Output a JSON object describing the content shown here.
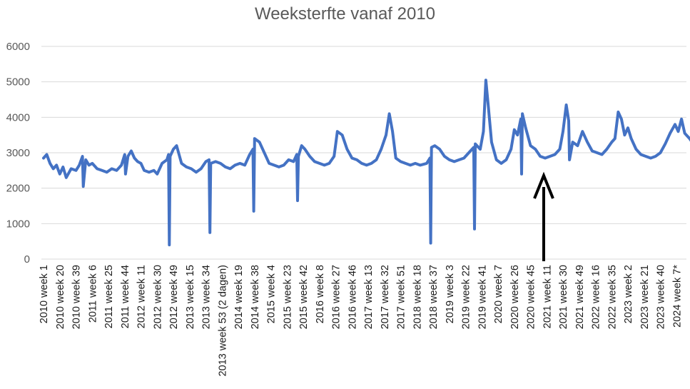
{
  "chart_data": {
    "type": "line",
    "title": "Weeksterfte vanaf 2010",
    "ylim": [
      0,
      6000
    ],
    "yticks": [
      0,
      1000,
      2000,
      3000,
      4000,
      5000,
      6000
    ],
    "grid": true,
    "x_tick_labels": [
      "2010 week 1",
      "2010 week 20",
      "2010 week 39",
      "2011 week 6",
      "2011 week 25",
      "2011 week 44",
      "2012 week 11",
      "2012 week 30",
      "2012 week 49",
      "2013 week 15",
      "2013 week 34",
      "2013 week 53 (2 dagen)",
      "2014 week 19",
      "2014 week 38",
      "2015 week 4",
      "2015 week 23",
      "2015 week 42",
      "2016 week 8",
      "2016 week 27",
      "2016 week 46",
      "2017 week 13",
      "2017 week 32",
      "2017 week 51",
      "2018 week 18",
      "2018 week 37",
      "2019 week 3",
      "2019 week 22",
      "2019 week 41",
      "2020 week 7",
      "2020 week 26",
      "2020 week 45",
      "2021 week 11",
      "2021 week 30",
      "2021 week 49",
      "2022 week 16",
      "2022 week 35",
      "2023 week 2",
      "2023 week 21",
      "2023 week 40",
      "2024 week 7*"
    ],
    "series": [
      {
        "color": "#4472c4",
        "points": [
          [
            0,
            2850
          ],
          [
            0.2,
            2950
          ],
          [
            0.4,
            2700
          ],
          [
            0.6,
            2550
          ],
          [
            0.8,
            2650
          ],
          [
            1.0,
            2400
          ],
          [
            1.2,
            2600
          ],
          [
            1.4,
            2300
          ],
          [
            1.7,
            2550
          ],
          [
            2.0,
            2500
          ],
          [
            2.2,
            2650
          ],
          [
            2.4,
            2900
          ],
          [
            2.45,
            2050
          ],
          [
            2.6,
            2800
          ],
          [
            2.8,
            2650
          ],
          [
            3.0,
            2700
          ],
          [
            3.3,
            2550
          ],
          [
            3.6,
            2500
          ],
          [
            3.9,
            2450
          ],
          [
            4.2,
            2550
          ],
          [
            4.5,
            2500
          ],
          [
            4.8,
            2650
          ],
          [
            5.0,
            2950
          ],
          [
            5.05,
            2400
          ],
          [
            5.2,
            2900
          ],
          [
            5.4,
            3050
          ],
          [
            5.6,
            2850
          ],
          [
            5.8,
            2750
          ],
          [
            6.0,
            2700
          ],
          [
            6.2,
            2500
          ],
          [
            6.5,
            2450
          ],
          [
            6.8,
            2500
          ],
          [
            7.0,
            2400
          ],
          [
            7.3,
            2700
          ],
          [
            7.6,
            2800
          ],
          [
            7.7,
            2950
          ],
          [
            7.75,
            400
          ],
          [
            7.8,
            2900
          ],
          [
            8.0,
            3100
          ],
          [
            8.2,
            3200
          ],
          [
            8.5,
            2700
          ],
          [
            8.8,
            2600
          ],
          [
            9.1,
            2550
          ],
          [
            9.4,
            2450
          ],
          [
            9.7,
            2550
          ],
          [
            10.0,
            2750
          ],
          [
            10.2,
            2800
          ],
          [
            10.25,
            750
          ],
          [
            10.3,
            2700
          ],
          [
            10.6,
            2750
          ],
          [
            10.9,
            2700
          ],
          [
            11.2,
            2600
          ],
          [
            11.5,
            2550
          ],
          [
            11.8,
            2650
          ],
          [
            12.1,
            2700
          ],
          [
            12.4,
            2650
          ],
          [
            12.7,
            2950
          ],
          [
            12.9,
            3100
          ],
          [
            12.95,
            1350
          ],
          [
            13.0,
            3400
          ],
          [
            13.3,
            3300
          ],
          [
            13.6,
            3000
          ],
          [
            13.9,
            2700
          ],
          [
            14.2,
            2650
          ],
          [
            14.5,
            2600
          ],
          [
            14.8,
            2650
          ],
          [
            15.1,
            2800
          ],
          [
            15.4,
            2750
          ],
          [
            15.6,
            2950
          ],
          [
            15.65,
            1650
          ],
          [
            15.7,
            2900
          ],
          [
            15.9,
            3200
          ],
          [
            16.1,
            3100
          ],
          [
            16.4,
            2900
          ],
          [
            16.7,
            2750
          ],
          [
            17.0,
            2700
          ],
          [
            17.3,
            2650
          ],
          [
            17.6,
            2700
          ],
          [
            17.9,
            2900
          ],
          [
            18.1,
            3600
          ],
          [
            18.4,
            3500
          ],
          [
            18.7,
            3100
          ],
          [
            19.0,
            2850
          ],
          [
            19.3,
            2800
          ],
          [
            19.6,
            2700
          ],
          [
            19.9,
            2650
          ],
          [
            20.2,
            2700
          ],
          [
            20.5,
            2800
          ],
          [
            20.8,
            3100
          ],
          [
            21.1,
            3500
          ],
          [
            21.3,
            4100
          ],
          [
            21.5,
            3600
          ],
          [
            21.7,
            2850
          ],
          [
            22.0,
            2750
          ],
          [
            22.3,
            2700
          ],
          [
            22.6,
            2650
          ],
          [
            22.9,
            2700
          ],
          [
            23.2,
            2650
          ],
          [
            23.6,
            2700
          ],
          [
            23.8,
            2850
          ],
          [
            23.85,
            450
          ],
          [
            23.9,
            3150
          ],
          [
            24.1,
            3200
          ],
          [
            24.4,
            3100
          ],
          [
            24.7,
            2900
          ],
          [
            25.0,
            2800
          ],
          [
            25.3,
            2750
          ],
          [
            25.6,
            2800
          ],
          [
            25.9,
            2850
          ],
          [
            26.2,
            3000
          ],
          [
            26.5,
            3150
          ],
          [
            26.55,
            850
          ],
          [
            26.6,
            3250
          ],
          [
            26.9,
            3100
          ],
          [
            27.1,
            3600
          ],
          [
            27.25,
            5050
          ],
          [
            27.4,
            4300
          ],
          [
            27.6,
            3300
          ],
          [
            27.9,
            2800
          ],
          [
            28.2,
            2700
          ],
          [
            28.5,
            2800
          ],
          [
            28.8,
            3100
          ],
          [
            29.0,
            3650
          ],
          [
            29.2,
            3500
          ],
          [
            29.4,
            3950
          ],
          [
            29.45,
            2400
          ],
          [
            29.5,
            4100
          ],
          [
            29.7,
            3700
          ],
          [
            30.0,
            3200
          ],
          [
            30.3,
            3100
          ],
          [
            30.6,
            2900
          ],
          [
            30.9,
            2850
          ],
          [
            31.2,
            2900
          ],
          [
            31.5,
            2950
          ],
          [
            31.8,
            3100
          ],
          [
            32.0,
            3600
          ],
          [
            32.2,
            4350
          ],
          [
            32.35,
            3900
          ],
          [
            32.4,
            2800
          ],
          [
            32.6,
            3300
          ],
          [
            32.9,
            3200
          ],
          [
            33.2,
            3600
          ],
          [
            33.5,
            3300
          ],
          [
            33.8,
            3050
          ],
          [
            34.1,
            3000
          ],
          [
            34.4,
            2950
          ],
          [
            34.7,
            3100
          ],
          [
            35.0,
            3300
          ],
          [
            35.2,
            3400
          ],
          [
            35.4,
            4150
          ],
          [
            35.6,
            3950
          ],
          [
            35.8,
            3500
          ],
          [
            36.0,
            3700
          ],
          [
            36.2,
            3400
          ],
          [
            36.5,
            3100
          ],
          [
            36.8,
            2950
          ],
          [
            37.1,
            2900
          ],
          [
            37.4,
            2850
          ],
          [
            37.7,
            2900
          ],
          [
            38.0,
            3000
          ],
          [
            38.3,
            3250
          ],
          [
            38.6,
            3550
          ],
          [
            38.9,
            3800
          ],
          [
            39.1,
            3600
          ],
          [
            39.3,
            3950
          ],
          [
            39.5,
            3550
          ],
          [
            39.8,
            3400
          ],
          [
            40.1,
            3200
          ],
          [
            40.4,
            3050
          ],
          [
            40.7,
            2950
          ]
        ]
      }
    ]
  }
}
